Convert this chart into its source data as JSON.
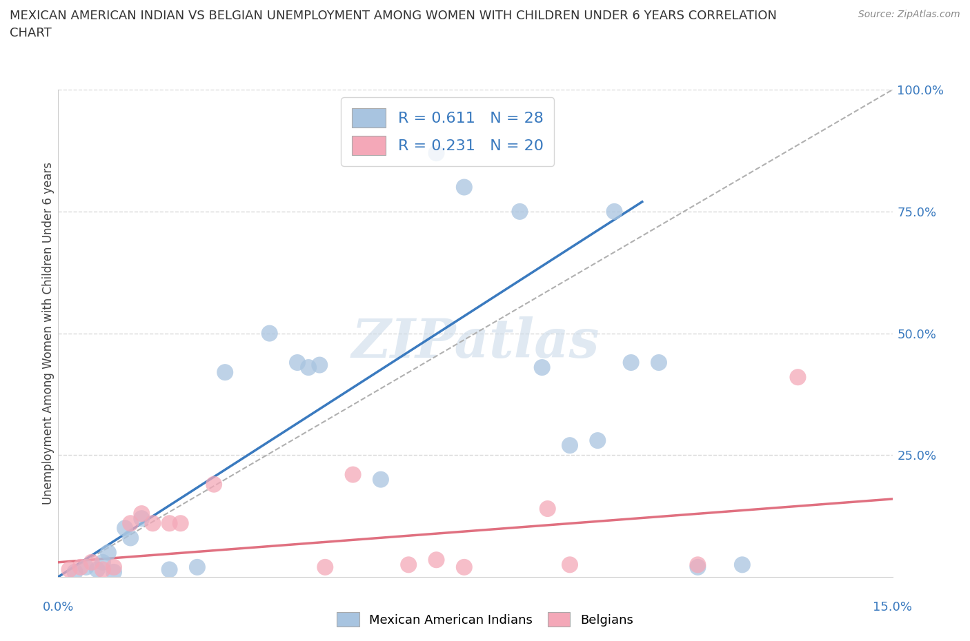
{
  "title": "MEXICAN AMERICAN INDIAN VS BELGIAN UNEMPLOYMENT AMONG WOMEN WITH CHILDREN UNDER 6 YEARS CORRELATION\nCHART",
  "source": "Source: ZipAtlas.com",
  "ylabel": "Unemployment Among Women with Children Under 6 years",
  "r_blue": 0.611,
  "n_blue": 28,
  "r_pink": 0.231,
  "n_pink": 20,
  "legend_blue": "Mexican American Indians",
  "legend_pink": "Belgians",
  "blue_color": "#a8c4e0",
  "pink_color": "#f4a8b8",
  "blue_line_color": "#3a7abf",
  "pink_line_color": "#e07080",
  "blue_scatter": [
    [
      0.3,
      1.0
    ],
    [
      0.5,
      2.0
    ],
    [
      0.7,
      1.5
    ],
    [
      0.8,
      3.0
    ],
    [
      0.9,
      5.0
    ],
    [
      1.0,
      1.0
    ],
    [
      1.2,
      10.0
    ],
    [
      1.3,
      8.0
    ],
    [
      1.5,
      12.0
    ],
    [
      2.0,
      1.5
    ],
    [
      2.5,
      2.0
    ],
    [
      3.0,
      42.0
    ],
    [
      3.8,
      50.0
    ],
    [
      4.3,
      44.0
    ],
    [
      4.5,
      43.0
    ],
    [
      4.7,
      43.5
    ],
    [
      5.8,
      20.0
    ],
    [
      6.8,
      87.0
    ],
    [
      7.3,
      80.0
    ],
    [
      8.3,
      75.0
    ],
    [
      8.7,
      43.0
    ],
    [
      9.2,
      27.0
    ],
    [
      9.7,
      28.0
    ],
    [
      10.0,
      75.0
    ],
    [
      10.3,
      44.0
    ],
    [
      10.8,
      44.0
    ],
    [
      11.5,
      2.0
    ],
    [
      12.3,
      2.5
    ]
  ],
  "pink_scatter": [
    [
      0.2,
      1.5
    ],
    [
      0.4,
      2.0
    ],
    [
      0.6,
      3.0
    ],
    [
      0.8,
      1.5
    ],
    [
      1.0,
      2.0
    ],
    [
      1.3,
      11.0
    ],
    [
      1.5,
      13.0
    ],
    [
      1.7,
      11.0
    ],
    [
      2.0,
      11.0
    ],
    [
      2.2,
      11.0
    ],
    [
      2.8,
      19.0
    ],
    [
      4.8,
      2.0
    ],
    [
      5.3,
      21.0
    ],
    [
      6.3,
      2.5
    ],
    [
      6.8,
      3.5
    ],
    [
      7.3,
      2.0
    ],
    [
      8.8,
      14.0
    ],
    [
      9.2,
      2.5
    ],
    [
      11.5,
      2.5
    ],
    [
      13.3,
      41.0
    ]
  ],
  "blue_line": [
    [
      0,
      0
    ],
    [
      10.5,
      77.0
    ]
  ],
  "pink_line": [
    [
      0,
      3.0
    ],
    [
      15.0,
      16.0
    ]
  ],
  "diag_line": [
    [
      0,
      0
    ],
    [
      15,
      100
    ]
  ],
  "xmin": 0.0,
  "xmax": 15.0,
  "ymin": 0.0,
  "ymax": 100.0,
  "watermark": "ZIPatlas",
  "background_color": "#ffffff",
  "grid_color": "#d8d8d8"
}
